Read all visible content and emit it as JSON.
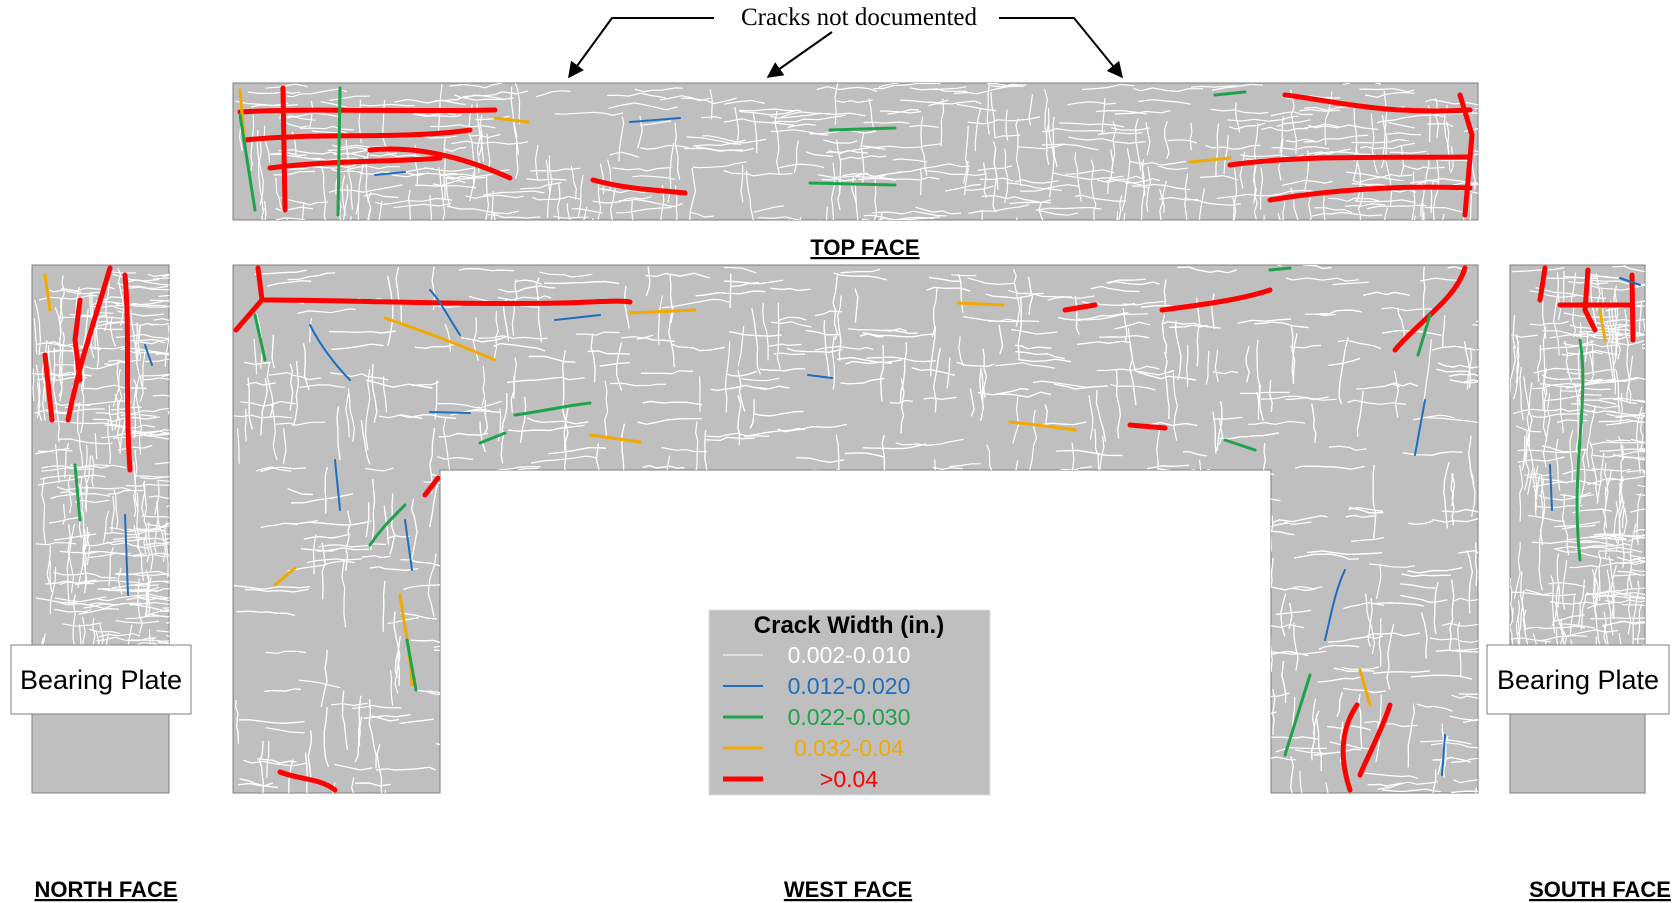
{
  "annotation": "Cracks not documented",
  "faces": {
    "top": "TOP FACE",
    "west": "WEST FACE",
    "north": "NORTH FACE",
    "south": "SOUTH FACE"
  },
  "bearing_plates": [
    "Bearing Plate",
    "Bearing Plate"
  ],
  "legend": {
    "title": "Crack Width (in.)",
    "items": [
      {
        "label": "0.002-0.010",
        "color": "#ffffff"
      },
      {
        "label": "0.012-0.020",
        "color": "#1f6fc0"
      },
      {
        "label": "0.022-0.030",
        "color": "#1ea34a"
      },
      {
        "label": "0.032-0.04",
        "color": "#f2a900"
      },
      {
        "label": ">0.04",
        "color": "#ff0000"
      }
    ]
  }
}
